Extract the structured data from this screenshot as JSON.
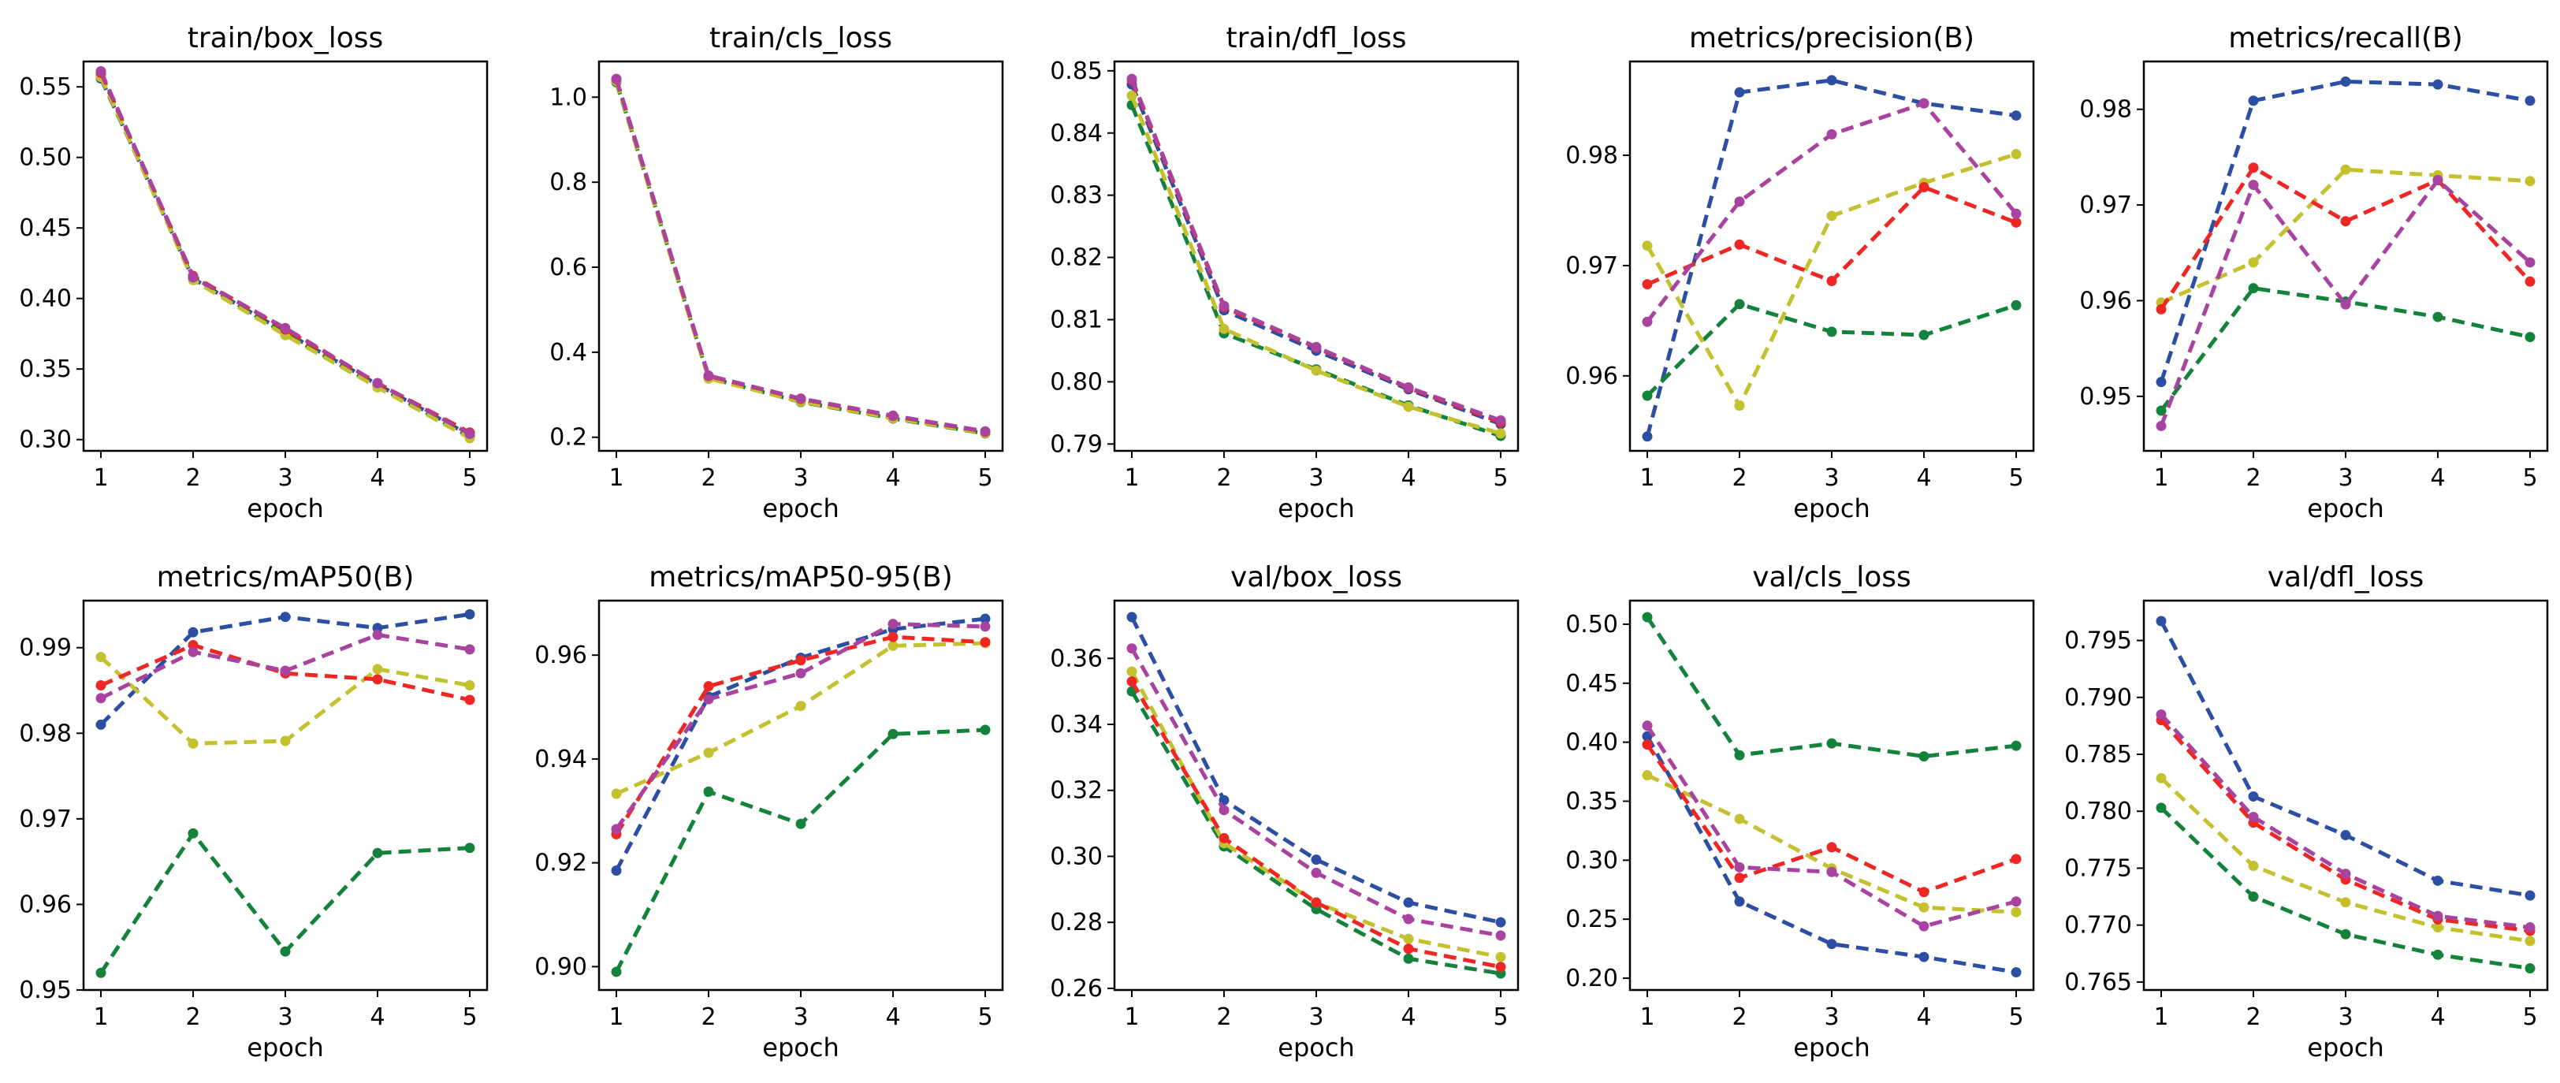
{
  "chart_data": [
    {
      "type": "line",
      "title": "train/box_loss",
      "xlabel": "epoch",
      "ylim": [
        0.292,
        0.568
      ],
      "x": [
        1,
        2,
        3,
        4,
        5
      ],
      "yticks": [
        "0.30",
        "0.35",
        "0.40",
        "0.45",
        "0.50",
        "0.55"
      ],
      "series": [
        {
          "name": "blue",
          "color": "#2d4fa3",
          "values": [
            0.556,
            0.414,
            0.376,
            0.339,
            0.303
          ]
        },
        {
          "name": "green",
          "color": "#13823b",
          "values": [
            0.559,
            0.415,
            0.375,
            0.338,
            0.302
          ]
        },
        {
          "name": "yellow",
          "color": "#c3c12e",
          "values": [
            0.557,
            0.413,
            0.374,
            0.337,
            0.301
          ]
        },
        {
          "name": "red",
          "color": "#ee2724",
          "values": [
            0.56,
            0.416,
            0.378,
            0.34,
            0.305
          ]
        },
        {
          "name": "purple",
          "color": "#a943a0",
          "values": [
            0.561,
            0.415,
            0.379,
            0.34,
            0.304
          ]
        }
      ]
    },
    {
      "type": "line",
      "title": "train/cls_loss",
      "xlabel": "epoch",
      "ylim": [
        0.168,
        1.084
      ],
      "x": [
        1,
        2,
        3,
        4,
        5
      ],
      "yticks": [
        "0.2",
        "0.4",
        "0.6",
        "0.8",
        "1.0"
      ],
      "series": [
        {
          "name": "blue",
          "color": "#2d4fa3",
          "values": [
            1.04,
            0.342,
            0.287,
            0.248,
            0.212
          ]
        },
        {
          "name": "green",
          "color": "#13823b",
          "values": [
            1.035,
            0.34,
            0.283,
            0.244,
            0.209
          ]
        },
        {
          "name": "yellow",
          "color": "#c3c12e",
          "values": [
            1.038,
            0.338,
            0.284,
            0.245,
            0.21
          ]
        },
        {
          "name": "red",
          "color": "#ee2724",
          "values": [
            1.042,
            0.344,
            0.29,
            0.25,
            0.213
          ]
        },
        {
          "name": "purple",
          "color": "#a943a0",
          "values": [
            1.043,
            0.345,
            0.291,
            0.251,
            0.214
          ]
        }
      ]
    },
    {
      "type": "line",
      "title": "train/dfl_loss",
      "xlabel": "epoch",
      "ylim": [
        0.7889,
        0.8515
      ],
      "x": [
        1,
        2,
        3,
        4,
        5
      ],
      "yticks": [
        "0.79",
        "0.80",
        "0.81",
        "0.82",
        "0.83",
        "0.84",
        "0.85"
      ],
      "series": [
        {
          "name": "blue",
          "color": "#2d4fa3",
          "values": [
            0.8478,
            0.8115,
            0.805,
            0.7988,
            0.7932
          ]
        },
        {
          "name": "green",
          "color": "#13823b",
          "values": [
            0.8445,
            0.8078,
            0.802,
            0.7962,
            0.7913
          ]
        },
        {
          "name": "yellow",
          "color": "#c3c12e",
          "values": [
            0.846,
            0.8085,
            0.8018,
            0.796,
            0.7917
          ]
        },
        {
          "name": "red",
          "color": "#ee2724",
          "values": [
            0.8485,
            0.812,
            0.8055,
            0.799,
            0.7935
          ]
        },
        {
          "name": "purple",
          "color": "#a943a0",
          "values": [
            0.8487,
            0.8122,
            0.8056,
            0.7991,
            0.7938
          ]
        }
      ]
    },
    {
      "type": "line",
      "title": "metrics/precision(B)",
      "xlabel": "epoch",
      "ylim": [
        0.9532,
        0.9885
      ],
      "x": [
        1,
        2,
        3,
        4,
        5
      ],
      "yticks": [
        "0.96",
        "0.97",
        "0.98"
      ],
      "series": [
        {
          "name": "blue",
          "color": "#2d4fa3",
          "values": [
            0.9545,
            0.9857,
            0.9868,
            0.9847,
            0.9836
          ]
        },
        {
          "name": "green",
          "color": "#13823b",
          "values": [
            0.9582,
            0.9665,
            0.964,
            0.9637,
            0.9664
          ]
        },
        {
          "name": "yellow",
          "color": "#c3c12e",
          "values": [
            0.9718,
            0.9573,
            0.9745,
            0.9775,
            0.9801
          ]
        },
        {
          "name": "red",
          "color": "#ee2724",
          "values": [
            0.9683,
            0.9719,
            0.9686,
            0.9771,
            0.9739
          ]
        },
        {
          "name": "purple",
          "color": "#a943a0",
          "values": [
            0.9649,
            0.9758,
            0.9819,
            0.9847,
            0.9747
          ]
        }
      ]
    },
    {
      "type": "line",
      "title": "metrics/recall(B)",
      "xlabel": "epoch",
      "ylim": [
        0.9443,
        0.985
      ],
      "x": [
        1,
        2,
        3,
        4,
        5
      ],
      "yticks": [
        "0.95",
        "0.96",
        "0.97",
        "0.98"
      ],
      "series": [
        {
          "name": "blue",
          "color": "#2d4fa3",
          "values": [
            0.9515,
            0.9809,
            0.9829,
            0.9826,
            0.9809
          ]
        },
        {
          "name": "green",
          "color": "#13823b",
          "values": [
            0.9485,
            0.9613,
            0.9599,
            0.9583,
            0.9562
          ]
        },
        {
          "name": "yellow",
          "color": "#c3c12e",
          "values": [
            0.9598,
            0.964,
            0.9737,
            0.9731,
            0.9725
          ]
        },
        {
          "name": "red",
          "color": "#ee2724",
          "values": [
            0.9591,
            0.9739,
            0.9683,
            0.9726,
            0.962
          ]
        },
        {
          "name": "purple",
          "color": "#a943a0",
          "values": [
            0.9469,
            0.9721,
            0.9596,
            0.9726,
            0.964
          ]
        }
      ]
    },
    {
      "type": "line",
      "title": "metrics/mAP50(B)",
      "xlabel": "epoch",
      "ylim": [
        0.95,
        0.9955
      ],
      "x": [
        1,
        2,
        3,
        4,
        5
      ],
      "yticks": [
        "0.95",
        "0.96",
        "0.97",
        "0.98",
        "0.99"
      ],
      "series": [
        {
          "name": "blue",
          "color": "#2d4fa3",
          "values": [
            0.981,
            0.9918,
            0.9936,
            0.9923,
            0.9939
          ]
        },
        {
          "name": "green",
          "color": "#13823b",
          "values": [
            0.952,
            0.9683,
            0.9545,
            0.966,
            0.9666
          ]
        },
        {
          "name": "yellow",
          "color": "#c3c12e",
          "values": [
            0.9889,
            0.9788,
            0.9791,
            0.9875,
            0.9856
          ]
        },
        {
          "name": "red",
          "color": "#ee2724",
          "values": [
            0.9856,
            0.9903,
            0.987,
            0.9863,
            0.9839
          ]
        },
        {
          "name": "purple",
          "color": "#a943a0",
          "values": [
            0.9841,
            0.9895,
            0.9873,
            0.9915,
            0.9898
          ]
        }
      ]
    },
    {
      "type": "line",
      "title": "metrics/mAP50-95(B)",
      "xlabel": "epoch",
      "ylim": [
        0.8955,
        0.9705
      ],
      "x": [
        1,
        2,
        3,
        4,
        5
      ],
      "yticks": [
        "0.90",
        "0.92",
        "0.94",
        "0.96"
      ],
      "series": [
        {
          "name": "blue",
          "color": "#2d4fa3",
          "values": [
            0.9185,
            0.952,
            0.9595,
            0.965,
            0.967
          ]
        },
        {
          "name": "green",
          "color": "#13823b",
          "values": [
            0.899,
            0.9337,
            0.9275,
            0.9448,
            0.9456
          ]
        },
        {
          "name": "yellow",
          "color": "#c3c12e",
          "values": [
            0.9333,
            0.9412,
            0.9502,
            0.9618,
            0.9623
          ]
        },
        {
          "name": "red",
          "color": "#ee2724",
          "values": [
            0.9255,
            0.954,
            0.959,
            0.9635,
            0.9625
          ]
        },
        {
          "name": "purple",
          "color": "#a943a0",
          "values": [
            0.9265,
            0.9515,
            0.9565,
            0.966,
            0.9655
          ]
        }
      ]
    },
    {
      "type": "line",
      "title": "val/box_loss",
      "xlabel": "epoch",
      "ylim": [
        0.2595,
        0.3775
      ],
      "x": [
        1,
        2,
        3,
        4,
        5
      ],
      "yticks": [
        "0.26",
        "0.28",
        "0.30",
        "0.32",
        "0.34",
        "0.36"
      ],
      "series": [
        {
          "name": "blue",
          "color": "#2d4fa3",
          "values": [
            0.3725,
            0.317,
            0.299,
            0.286,
            0.28
          ]
        },
        {
          "name": "green",
          "color": "#13823b",
          "values": [
            0.35,
            0.303,
            0.284,
            0.269,
            0.2645
          ]
        },
        {
          "name": "yellow",
          "color": "#c3c12e",
          "values": [
            0.356,
            0.304,
            0.286,
            0.275,
            0.2695
          ]
        },
        {
          "name": "red",
          "color": "#ee2724",
          "values": [
            0.353,
            0.3055,
            0.286,
            0.272,
            0.2665
          ]
        },
        {
          "name": "purple",
          "color": "#a943a0",
          "values": [
            0.363,
            0.314,
            0.295,
            0.281,
            0.276
          ]
        }
      ]
    },
    {
      "type": "line",
      "title": "val/cls_loss",
      "xlabel": "epoch",
      "ylim": [
        0.19,
        0.52
      ],
      "x": [
        1,
        2,
        3,
        4,
        5
      ],
      "yticks": [
        "0.20",
        "0.25",
        "0.30",
        "0.35",
        "0.40",
        "0.45",
        "0.50"
      ],
      "series": [
        {
          "name": "blue",
          "color": "#2d4fa3",
          "values": [
            0.405,
            0.265,
            0.229,
            0.218,
            0.205
          ]
        },
        {
          "name": "green",
          "color": "#13823b",
          "values": [
            0.506,
            0.389,
            0.399,
            0.388,
            0.397
          ]
        },
        {
          "name": "yellow",
          "color": "#c3c12e",
          "values": [
            0.372,
            0.335,
            0.293,
            0.26,
            0.256
          ]
        },
        {
          "name": "red",
          "color": "#ee2724",
          "values": [
            0.398,
            0.285,
            0.311,
            0.273,
            0.301
          ]
        },
        {
          "name": "purple",
          "color": "#a943a0",
          "values": [
            0.414,
            0.294,
            0.29,
            0.244,
            0.265
          ]
        }
      ]
    },
    {
      "type": "line",
      "title": "val/dfl_loss",
      "xlabel": "epoch",
      "ylim": [
        0.7643,
        0.7985
      ],
      "x": [
        1,
        2,
        3,
        4,
        5
      ],
      "yticks": [
        "0.765",
        "0.770",
        "0.775",
        "0.780",
        "0.785",
        "0.790",
        "0.795"
      ],
      "series": [
        {
          "name": "blue",
          "color": "#2d4fa3",
          "values": [
            0.7967,
            0.7813,
            0.7779,
            0.7739,
            0.7726
          ]
        },
        {
          "name": "green",
          "color": "#13823b",
          "values": [
            0.7803,
            0.7725,
            0.7692,
            0.7674,
            0.7662
          ]
        },
        {
          "name": "yellow",
          "color": "#c3c12e",
          "values": [
            0.7829,
            0.7752,
            0.772,
            0.7698,
            0.7686
          ]
        },
        {
          "name": "red",
          "color": "#ee2724",
          "values": [
            0.788,
            0.779,
            0.774,
            0.7705,
            0.7695
          ]
        },
        {
          "name": "purple",
          "color": "#a943a0",
          "values": [
            0.7885,
            0.7795,
            0.7745,
            0.7708,
            0.7698
          ]
        }
      ]
    }
  ]
}
